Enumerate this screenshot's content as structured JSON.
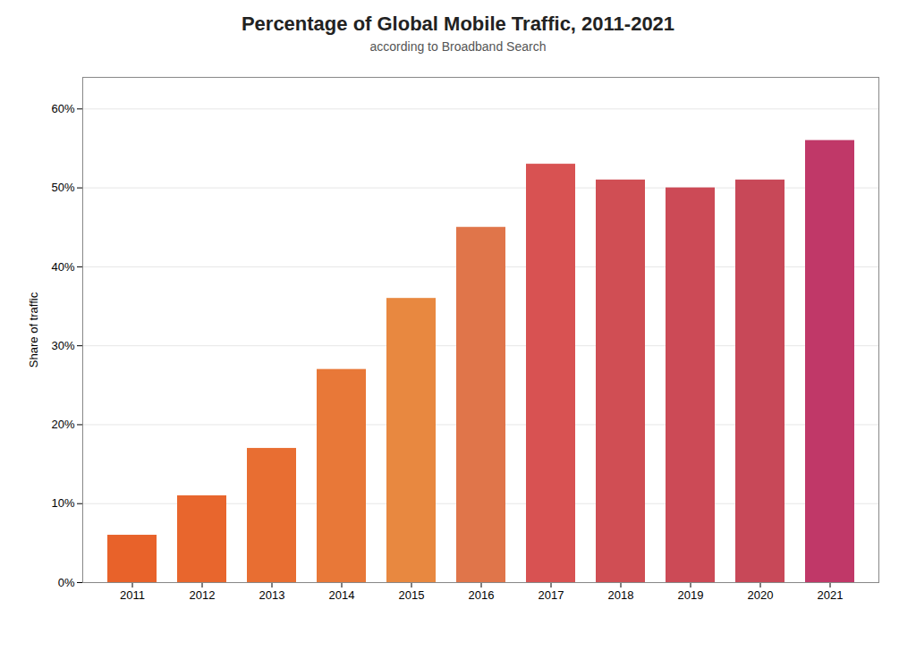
{
  "chart_data": {
    "type": "bar",
    "title": "Percentage of Global Mobile Traffic, 2011-2021",
    "subtitle": "according to Broadband Search",
    "ylabel": "Share of traffic",
    "categories": [
      "2011",
      "2012",
      "2013",
      "2014",
      "2015",
      "2016",
      "2017",
      "2018",
      "2019",
      "2020",
      "2021"
    ],
    "values": [
      6,
      11,
      17,
      27,
      36,
      45,
      53,
      51,
      50,
      51,
      56
    ],
    "colors": [
      "#E8622A",
      "#E8662D",
      "#E86E32",
      "#E87838",
      "#E88840",
      "#E0754A",
      "#D85252",
      "#D04E54",
      "#CC4A56",
      "#C84858",
      "#C03868"
    ],
    "ylim": [
      0,
      64
    ],
    "yticks": [
      {
        "value": 0,
        "label": "0%"
      },
      {
        "value": 10,
        "label": "10%"
      },
      {
        "value": 20,
        "label": "20%"
      },
      {
        "value": 30,
        "label": "30%"
      },
      {
        "value": 40,
        "label": "40%"
      },
      {
        "value": 50,
        "label": "50%"
      },
      {
        "value": 60,
        "label": "60%"
      }
    ],
    "grid": true
  }
}
